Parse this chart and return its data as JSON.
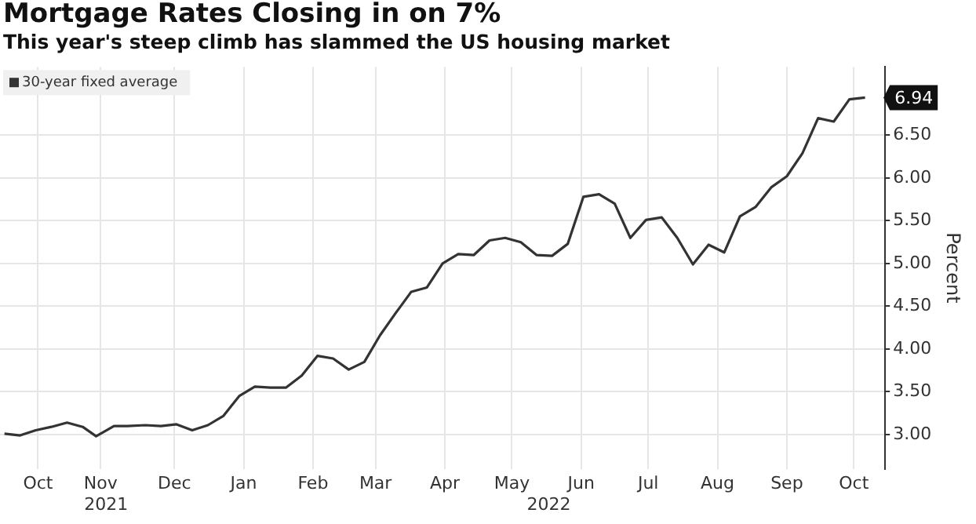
{
  "chart_data": {
    "type": "line",
    "title": "Mortgage Rates Closing in on 7%",
    "subtitle": "This year's steep climb has slammed the US housing market",
    "ylabel": "Percent",
    "x": [
      "2021-09-30",
      "2021-10-07",
      "2021-10-14",
      "2021-10-21",
      "2021-10-28",
      "2021-11-04",
      "2021-11-10",
      "2021-11-18",
      "2021-11-24",
      "2021-12-02",
      "2021-12-09",
      "2021-12-16",
      "2021-12-23",
      "2021-12-30",
      "2022-01-06",
      "2022-01-13",
      "2022-01-20",
      "2022-01-27",
      "2022-02-03",
      "2022-02-10",
      "2022-02-17",
      "2022-02-24",
      "2022-03-03",
      "2022-03-10",
      "2022-03-17",
      "2022-03-24",
      "2022-03-31",
      "2022-04-07",
      "2022-04-14",
      "2022-04-21",
      "2022-04-28",
      "2022-05-05",
      "2022-05-12",
      "2022-05-19",
      "2022-05-26",
      "2022-06-02",
      "2022-06-09",
      "2022-06-16",
      "2022-06-23",
      "2022-06-30",
      "2022-07-07",
      "2022-07-14",
      "2022-07-21",
      "2022-07-28",
      "2022-08-04",
      "2022-08-11",
      "2022-08-18",
      "2022-08-25",
      "2022-09-01",
      "2022-09-08",
      "2022-09-15",
      "2022-09-22",
      "2022-09-29",
      "2022-10-06",
      "2022-10-13",
      "2022-10-20"
    ],
    "series": [
      {
        "name": "30-year fixed average",
        "color": "#333333",
        "values": [
          3.01,
          2.99,
          3.05,
          3.09,
          3.14,
          3.09,
          2.98,
          3.1,
          3.1,
          3.11,
          3.1,
          3.12,
          3.05,
          3.11,
          3.22,
          3.45,
          3.56,
          3.55,
          3.55,
          3.69,
          3.92,
          3.89,
          3.76,
          3.85,
          4.16,
          4.42,
          4.67,
          4.72,
          5.0,
          5.11,
          5.1,
          5.27,
          5.3,
          5.25,
          5.1,
          5.09,
          5.23,
          5.78,
          5.81,
          5.7,
          5.3,
          5.51,
          5.54,
          5.3,
          4.99,
          5.22,
          5.13,
          5.55,
          5.66,
          5.89,
          6.02,
          6.29,
          6.7,
          6.66,
          6.92,
          6.94
        ],
        "value_labels": [
          null,
          null,
          null,
          null,
          null,
          null,
          null,
          null,
          null,
          null,
          null,
          null,
          null,
          null,
          null,
          null,
          null,
          null,
          null,
          null,
          null,
          null,
          null,
          null,
          null,
          null,
          null,
          null,
          null,
          null,
          null,
          null,
          null,
          null,
          null,
          null,
          null,
          null,
          null,
          null,
          null,
          null,
          null,
          null,
          null,
          null,
          null,
          null,
          null,
          null,
          null,
          null,
          null,
          null,
          null,
          "6.94"
        ]
      }
    ],
    "xlim": [
      "2021-09-28",
      "2022-10-29"
    ],
    "xticks": [
      {
        "value": "2021-10-15",
        "label": "Oct"
      },
      {
        "value": "2021-11-12",
        "label": "Nov"
      },
      {
        "value": "2021-12-15",
        "label": "Dec"
      },
      {
        "value": "2022-01-15",
        "label": "Jan"
      },
      {
        "value": "2022-02-15",
        "label": "Feb"
      },
      {
        "value": "2022-03-15",
        "label": "Mar"
      },
      {
        "value": "2022-04-15",
        "label": "Apr"
      },
      {
        "value": "2022-05-15",
        "label": "May"
      },
      {
        "value": "2022-06-15",
        "label": "Jun"
      },
      {
        "value": "2022-07-15",
        "label": "Jul"
      },
      {
        "value": "2022-08-15",
        "label": "Aug"
      },
      {
        "value": "2022-09-15",
        "label": "Sep"
      },
      {
        "value": "2022-10-15",
        "label": "Oct"
      }
    ],
    "ylim": [
      2.6,
      7.3
    ],
    "yticks": [
      {
        "value": 3,
        "label": "3.00"
      },
      {
        "value": 3.5,
        "label": "3.50"
      },
      {
        "value": 4,
        "label": "4.00"
      },
      {
        "value": 4.5,
        "label": "4.50"
      },
      {
        "value": 5,
        "label": "5.00"
      },
      {
        "value": 5.5,
        "label": "5.50"
      },
      {
        "value": 6,
        "label": "6.00"
      },
      {
        "value": 6.5,
        "label": "6.50"
      }
    ],
    "annotations": [
      "2021",
      "2022"
    ],
    "grid": true,
    "legend": "top left",
    "marker": "none",
    "line_style": "solid"
  }
}
